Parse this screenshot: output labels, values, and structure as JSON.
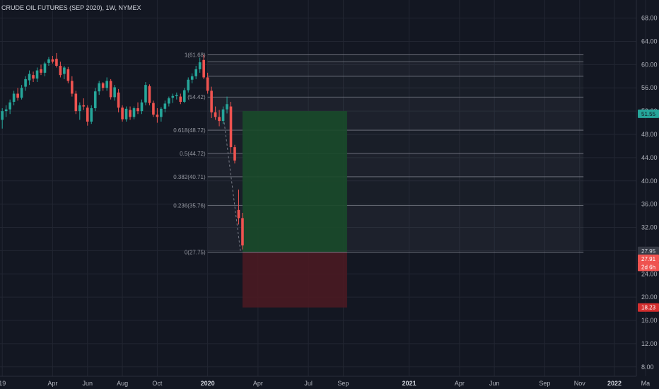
{
  "chart_data": {
    "type": "candlestick",
    "title": "CRUDE OIL FUTURES (SEP 2020), 1W, NYMEX",
    "ylim": [
      5.0,
      72.0
    ],
    "y_ticks": [
      "68.00",
      "64.00",
      "60.00",
      "56.00",
      "52.00",
      "48.00",
      "44.00",
      "40.00",
      "36.00",
      "32.00",
      "28.00",
      "24.00",
      "20.00",
      "16.00",
      "12.00",
      "8.00"
    ],
    "x_ticks": [
      {
        "label": "19",
        "week": 0
      },
      {
        "label": "Apr",
        "week": 13
      },
      {
        "label": "Jun",
        "week": 22
      },
      {
        "label": "Aug",
        "week": 31
      },
      {
        "label": "Oct",
        "week": 40
      },
      {
        "label": "2020",
        "week": 53,
        "bold": true
      },
      {
        "label": "Apr",
        "week": 66
      },
      {
        "label": "Jul",
        "week": 79
      },
      {
        "label": "Sep",
        "week": 88
      },
      {
        "label": "2021",
        "week": 105,
        "bold": true
      },
      {
        "label": "Apr",
        "week": 118
      },
      {
        "label": "Jun",
        "week": 127
      },
      {
        "label": "Sep",
        "week": 140
      },
      {
        "label": "Nov",
        "week": 149
      },
      {
        "label": "2022",
        "week": 158,
        "bold": true
      },
      {
        "label": "Ma",
        "week": 166
      }
    ],
    "candles": [
      [
        0,
        50.5,
        52.5,
        49.0,
        52.0
      ],
      [
        1,
        52.0,
        53.0,
        51.0,
        52.3
      ],
      [
        2,
        52.3,
        54.0,
        51.5,
        53.5
      ],
      [
        3,
        53.6,
        55.5,
        53.0,
        55.0
      ],
      [
        4,
        55.0,
        56.0,
        53.8,
        54.3
      ],
      [
        5,
        54.3,
        56.5,
        54.0,
        56.0
      ],
      [
        6,
        56.2,
        58.0,
        55.5,
        57.5
      ],
      [
        7,
        57.3,
        59.0,
        56.5,
        58.4
      ],
      [
        8,
        58.2,
        58.8,
        57.0,
        57.6
      ],
      [
        9,
        57.6,
        59.5,
        57.0,
        59.0
      ],
      [
        10,
        59.2,
        60.0,
        58.2,
        58.6
      ],
      [
        11,
        58.6,
        60.5,
        58.0,
        60.2
      ],
      [
        12,
        60.3,
        61.3,
        59.8,
        60.9
      ],
      [
        13,
        60.9,
        61.5,
        60.2,
        60.5
      ],
      [
        14,
        61.0,
        62.0,
        59.5,
        59.8
      ],
      [
        15,
        59.8,
        60.5,
        57.8,
        58.2
      ],
      [
        16,
        58.4,
        59.8,
        57.5,
        59.5
      ],
      [
        17,
        59.2,
        59.6,
        56.8,
        57.2
      ],
      [
        18,
        57.2,
        58.0,
        54.5,
        55.0
      ],
      [
        19,
        55.0,
        55.5,
        51.5,
        52.0
      ],
      [
        20,
        52.0,
        53.5,
        50.5,
        53.0
      ],
      [
        21,
        53.0,
        54.2,
        52.2,
        52.8
      ],
      [
        22,
        52.6,
        53.0,
        49.5,
        50.2
      ],
      [
        23,
        50.2,
        53.0,
        49.8,
        52.5
      ],
      [
        24,
        52.5,
        56.0,
        52.0,
        55.4
      ],
      [
        25,
        55.4,
        57.2,
        54.8,
        56.8
      ],
      [
        26,
        56.8,
        57.0,
        55.5,
        56.0
      ],
      [
        27,
        56.0,
        57.8,
        55.5,
        57.2
      ],
      [
        28,
        57.2,
        57.5,
        54.0,
        54.4
      ],
      [
        29,
        54.4,
        56.5,
        53.8,
        56.1
      ],
      [
        30,
        55.2,
        55.8,
        51.8,
        52.6
      ],
      [
        31,
        52.6,
        53.0,
        50.2,
        50.6
      ],
      [
        32,
        50.6,
        52.8,
        50.2,
        52.4
      ],
      [
        33,
        52.2,
        52.8,
        50.5,
        51.0
      ],
      [
        34,
        51.0,
        52.8,
        50.6,
        52.5
      ],
      [
        35,
        52.5,
        53.5,
        51.5,
        52.0
      ],
      [
        36,
        52.0,
        54.0,
        51.5,
        53.5
      ],
      [
        37,
        53.5,
        57.0,
        53.0,
        56.5
      ],
      [
        38,
        56.3,
        56.6,
        53.0,
        53.4
      ],
      [
        39,
        53.4,
        53.8,
        51.0,
        51.4
      ],
      [
        40,
        51.4,
        52.5,
        50.0,
        51.0
      ],
      [
        41,
        51.0,
        52.7,
        50.2,
        52.4
      ],
      [
        42,
        52.4,
        53.8,
        51.8,
        53.3
      ],
      [
        43,
        53.3,
        54.5,
        52.8,
        54.2
      ],
      [
        44,
        54.3,
        55.0,
        53.4,
        54.6
      ],
      [
        45,
        54.6,
        55.2,
        54.0,
        54.8
      ],
      [
        46,
        54.5,
        55.0,
        53.2,
        53.6
      ],
      [
        47,
        53.6,
        56.0,
        53.4,
        55.6
      ],
      [
        48,
        55.6,
        57.8,
        55.2,
        57.4
      ],
      [
        49,
        57.4,
        58.5,
        56.8,
        58.0
      ],
      [
        50,
        58.0,
        59.8,
        57.5,
        59.2
      ],
      [
        51,
        59.2,
        61.2,
        58.6,
        60.4
      ],
      [
        52,
        60.8,
        61.7,
        57.5,
        57.8
      ],
      [
        53,
        57.8,
        58.6,
        55.0,
        55.5
      ],
      [
        54,
        55.5,
        56.2,
        50.8,
        51.8
      ],
      [
        55,
        51.8,
        52.8,
        50.5,
        51.0
      ],
      [
        56,
        51.0,
        52.2,
        49.4,
        50.3
      ],
      [
        57,
        50.3,
        52.8,
        49.8,
        52.3
      ],
      [
        58,
        52.3,
        54.5,
        51.6,
        53.2
      ],
      [
        59,
        52.8,
        53.6,
        44.8,
        45.8
      ],
      [
        60,
        45.8,
        46.2,
        43.0,
        43.5
      ],
      [
        61,
        35.0,
        38.5,
        32.5,
        33.6
      ],
      [
        62,
        33.6,
        34.5,
        28.2,
        28.9
      ]
    ],
    "weekly_gap_pattern": "gap",
    "fibonacci": {
      "start_week": 53,
      "end_week": 150,
      "levels": [
        {
          "label": "1(61.68)",
          "value": 61.68
        },
        {
          "label": "",
          "value": 60.5
        },
        {
          "label": "",
          "value": 58.0
        },
        {
          "label": "(54.42)",
          "value": 54.42
        },
        {
          "label": "0.618(48.72)",
          "value": 48.72
        },
        {
          "label": "0.5(44.72)",
          "value": 44.72
        },
        {
          "label": "0.382(40.71)",
          "value": 40.71
        },
        {
          "label": "0.236(35.76)",
          "value": 35.76
        },
        {
          "label": "0(27.75)",
          "value": 27.75
        }
      ]
    },
    "position": {
      "entry": 27.75,
      "target": 52.0,
      "stop": 18.23,
      "start_week": 62,
      "end_week": 89
    },
    "price_tags": [
      {
        "label": "51.55",
        "value": 51.55,
        "bg": "#26a69a",
        "fg": "#131722"
      },
      {
        "label": "27.95",
        "value": 27.95,
        "bg": "#363a45",
        "fg": "#d1d4dc"
      },
      {
        "label": "27.91",
        "value": 26.6,
        "bg": "#ef5350",
        "fg": "#ffffff"
      },
      {
        "label": "2d 6h",
        "value": 25.2,
        "bg": "#ef5350",
        "fg": "#ffffff"
      },
      {
        "label": "18.23",
        "value": 18.23,
        "bg": "#d32f2f",
        "fg": "#ffffff"
      }
    ],
    "colors": {
      "up": "#26a69a",
      "down": "#ef5350",
      "grid": "#222632",
      "fib": "#787b86",
      "profit": "#1a4a2a",
      "loss": "#4a1a22"
    }
  }
}
